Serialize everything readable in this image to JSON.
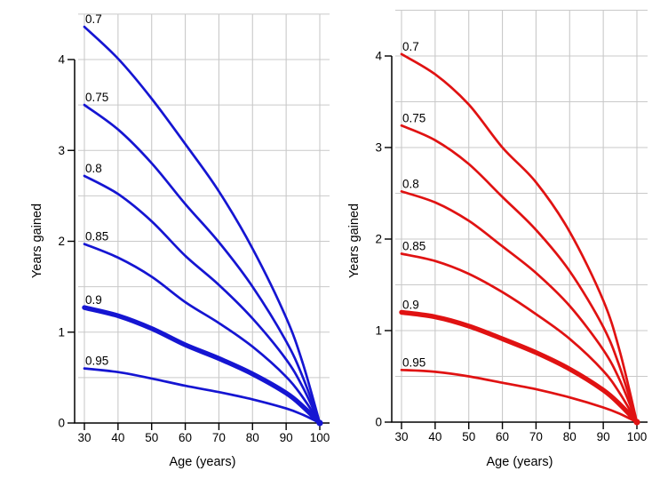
{
  "colors": {
    "blue": "#1515d2",
    "red": "#e01212",
    "grid": "#c9c9c9",
    "axis": "#000000",
    "text": "#000000",
    "background": "#ffffff"
  },
  "chart_data": [
    {
      "type": "line",
      "panel": "left",
      "series_color": "#1515d2",
      "xlabel": "Age (years)",
      "ylabel": "Years gained",
      "x": [
        30,
        40,
        50,
        60,
        70,
        80,
        90,
        95,
        100
      ],
      "xticks": [
        30,
        40,
        50,
        60,
        70,
        80,
        90,
        100
      ],
      "yticks": [
        0,
        1,
        2,
        3,
        4
      ],
      "xlim": [
        30,
        100
      ],
      "ylim": [
        0,
        4.5
      ],
      "grid_step_y": 0.5,
      "grid_step_x": 10,
      "legend": "labels on curves",
      "series": [
        {
          "name": "0.7",
          "thick": false,
          "values": [
            4.36,
            4.01,
            3.57,
            3.07,
            2.55,
            1.92,
            1.16,
            0.65,
            0
          ]
        },
        {
          "name": "0.75",
          "thick": false,
          "values": [
            3.5,
            3.23,
            2.86,
            2.41,
            1.99,
            1.5,
            0.9,
            0.5,
            0
          ]
        },
        {
          "name": "0.8",
          "thick": false,
          "values": [
            2.72,
            2.52,
            2.22,
            1.84,
            1.52,
            1.15,
            0.7,
            0.39,
            0
          ]
        },
        {
          "name": "0.85",
          "thick": false,
          "values": [
            1.97,
            1.82,
            1.61,
            1.33,
            1.1,
            0.84,
            0.51,
            0.28,
            0
          ]
        },
        {
          "name": "0.9",
          "thick": true,
          "values": [
            1.27,
            1.18,
            1.04,
            0.86,
            0.71,
            0.54,
            0.33,
            0.18,
            0
          ]
        },
        {
          "name": "0.95",
          "thick": false,
          "values": [
            0.6,
            0.56,
            0.49,
            0.41,
            0.34,
            0.26,
            0.16,
            0.09,
            0
          ]
        }
      ]
    },
    {
      "type": "line",
      "panel": "right",
      "series_color": "#e01212",
      "xlabel": "Age (years)",
      "ylabel": "Years gained",
      "x": [
        30,
        40,
        50,
        60,
        70,
        80,
        90,
        95,
        100
      ],
      "xticks": [
        30,
        40,
        50,
        60,
        70,
        80,
        90,
        100
      ],
      "yticks": [
        0,
        1,
        2,
        3,
        4
      ],
      "xlim": [
        30,
        100
      ],
      "ylim": [
        0,
        4.5
      ],
      "grid_step_y": 0.5,
      "grid_step_x": 10,
      "legend": "labels on curves",
      "series": [
        {
          "name": "0.7",
          "thick": false,
          "values": [
            4.02,
            3.8,
            3.47,
            3.0,
            2.62,
            2.08,
            1.33,
            0.76,
            0
          ]
        },
        {
          "name": "0.75",
          "thick": false,
          "values": [
            3.24,
            3.08,
            2.82,
            2.46,
            2.1,
            1.65,
            1.04,
            0.59,
            0
          ]
        },
        {
          "name": "0.8",
          "thick": false,
          "values": [
            2.52,
            2.4,
            2.2,
            1.92,
            1.63,
            1.27,
            0.79,
            0.45,
            0
          ]
        },
        {
          "name": "0.85",
          "thick": false,
          "values": [
            1.84,
            1.76,
            1.62,
            1.42,
            1.18,
            0.91,
            0.56,
            0.31,
            0
          ]
        },
        {
          "name": "0.9",
          "thick": true,
          "values": [
            1.2,
            1.15,
            1.05,
            0.91,
            0.76,
            0.58,
            0.35,
            0.19,
            0
          ]
        },
        {
          "name": "0.95",
          "thick": false,
          "values": [
            0.57,
            0.55,
            0.5,
            0.43,
            0.36,
            0.27,
            0.16,
            0.09,
            0
          ]
        }
      ]
    }
  ]
}
